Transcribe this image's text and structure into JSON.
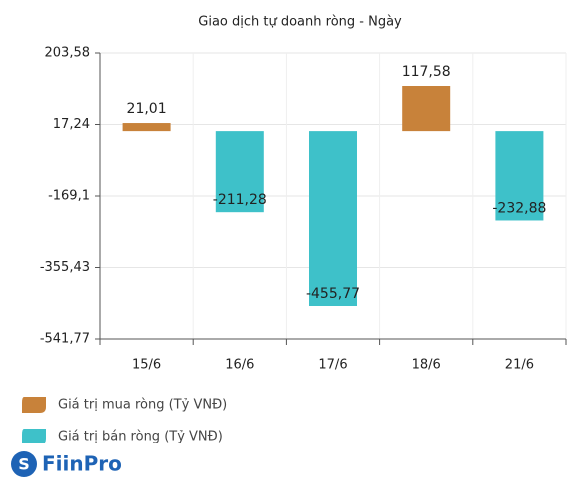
{
  "chart_data": {
    "type": "bar",
    "title": "Giao dịch tự doanh ròng - Ngày",
    "categories": [
      "15/6",
      "16/6",
      "17/6",
      "18/6",
      "21/6"
    ],
    "series": [
      {
        "name": "Giá trị mua ròng (Tỷ VNĐ)",
        "color": "#c8823a",
        "values": [
          21.01,
          null,
          null,
          117.58,
          null
        ],
        "value_labels": [
          "21,01",
          null,
          null,
          "117,58",
          null
        ]
      },
      {
        "name": "Giá trị bán ròng (Tỷ VNĐ)",
        "color": "#3ec1c9",
        "values": [
          null,
          -211.28,
          -455.77,
          null,
          -232.88
        ],
        "value_labels": [
          null,
          "-211,28",
          "-455,77",
          null,
          "-232,88"
        ]
      }
    ],
    "ylim": [
      -541.77,
      203.58
    ],
    "yticks": [
      {
        "value": 203.58,
        "label": "203,58"
      },
      {
        "value": 17.24,
        "label": "17,24"
      },
      {
        "value": -169.1,
        "label": "-169,1"
      },
      {
        "value": -355.43,
        "label": "-355,43"
      },
      {
        "value": -541.77,
        "label": "-541,77"
      }
    ],
    "grid": true,
    "legend": "bottom",
    "logo": "FiinPro"
  }
}
